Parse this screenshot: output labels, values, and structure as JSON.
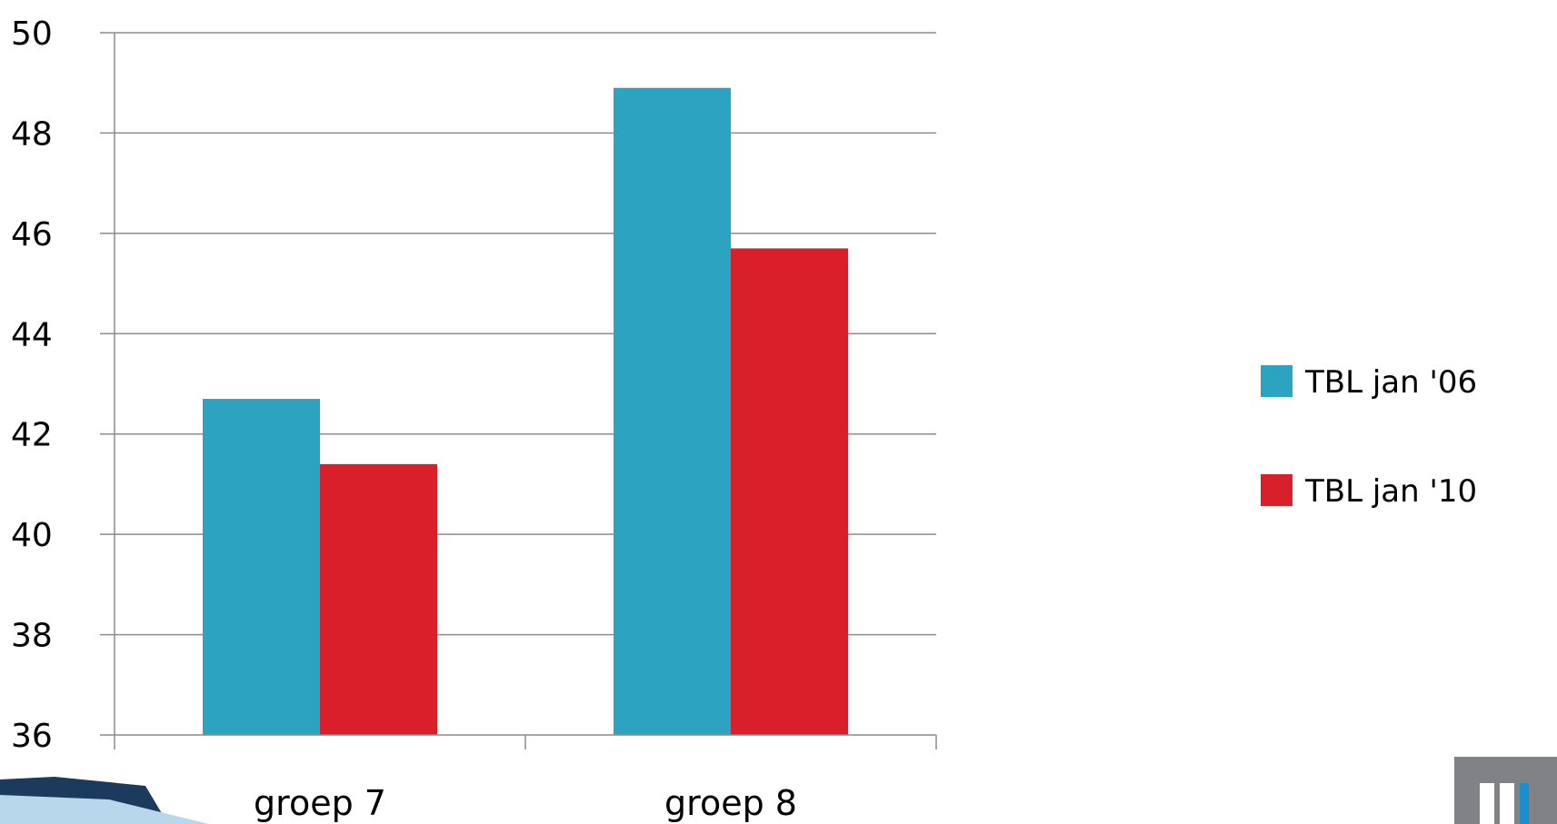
{
  "chart_data": {
    "type": "bar",
    "categories": [
      "groep 7",
      "groep 8"
    ],
    "series": [
      {
        "name": "TBL jan '06",
        "color": "#2ca3c0",
        "values": [
          42.7,
          48.9
        ]
      },
      {
        "name": "TBL jan '10",
        "color": "#d9202a",
        "values": [
          41.4,
          45.7
        ]
      }
    ],
    "ylim": [
      36,
      50
    ],
    "yticks": [
      36,
      38,
      40,
      42,
      44,
      46,
      48,
      50
    ],
    "grid": true,
    "legend_position": "right"
  }
}
